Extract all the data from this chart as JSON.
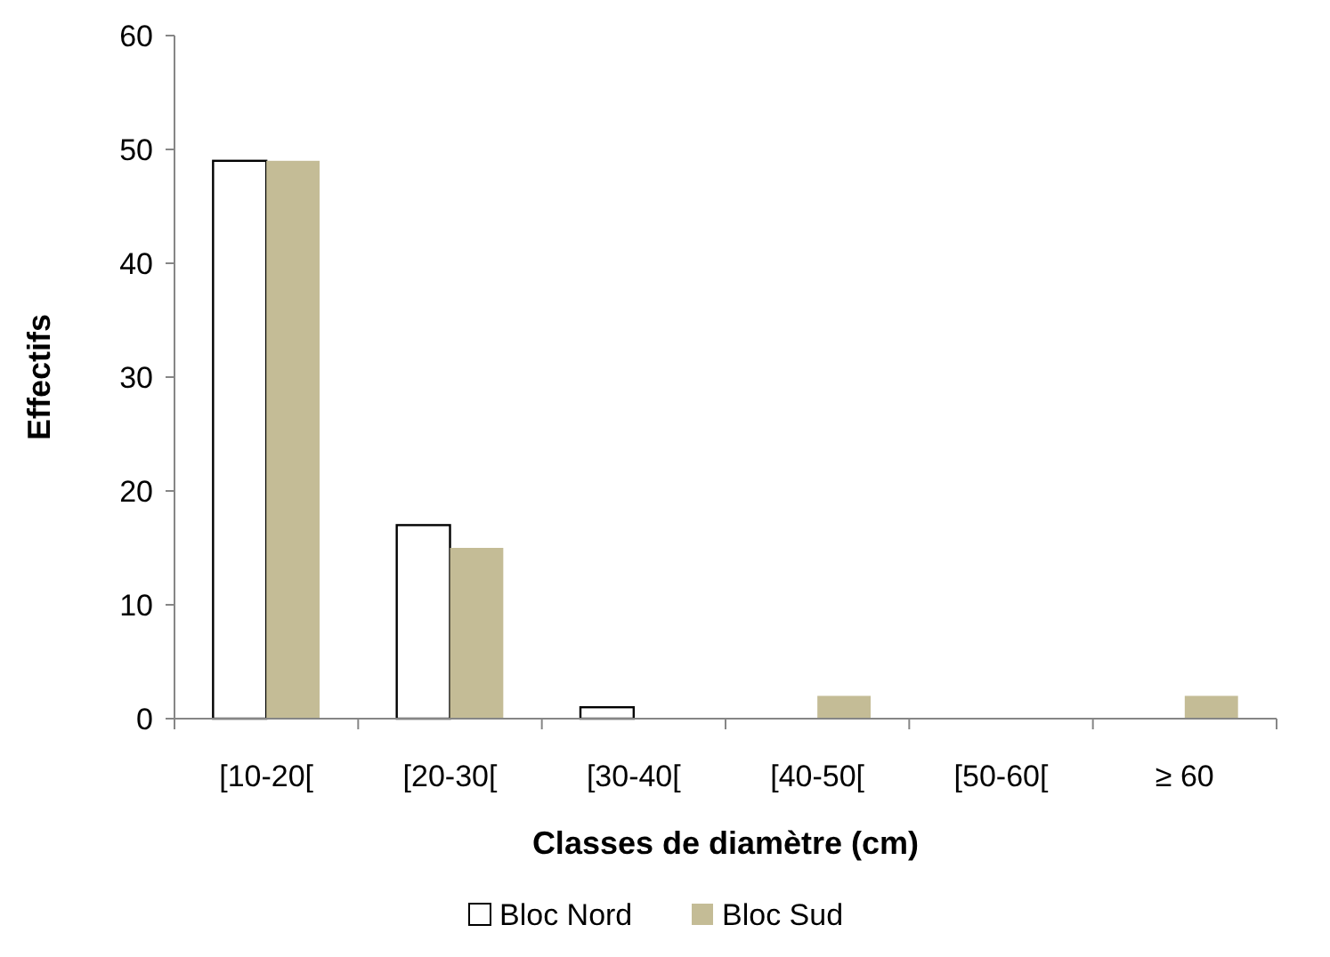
{
  "chart_data": {
    "type": "bar",
    "xlabel": "Classes de diamètre (cm)",
    "ylabel": "Effectifs",
    "categories": [
      "[10-20[",
      "[20-30[",
      "[30-40[",
      "[40-50[",
      "[50-60[",
      "≥ 60"
    ],
    "series": [
      {
        "name": "Bloc Nord",
        "color": "#ffffff",
        "values": [
          49,
          17,
          1,
          0,
          0,
          0
        ]
      },
      {
        "name": "Bloc Sud",
        "color": "#c4bc96",
        "values": [
          49,
          15,
          0,
          2,
          0,
          2
        ]
      }
    ],
    "ylim": [
      0,
      60
    ],
    "yticks": [
      0,
      10,
      20,
      30,
      40,
      50,
      60
    ],
    "grid": false,
    "legend": "bottom"
  }
}
